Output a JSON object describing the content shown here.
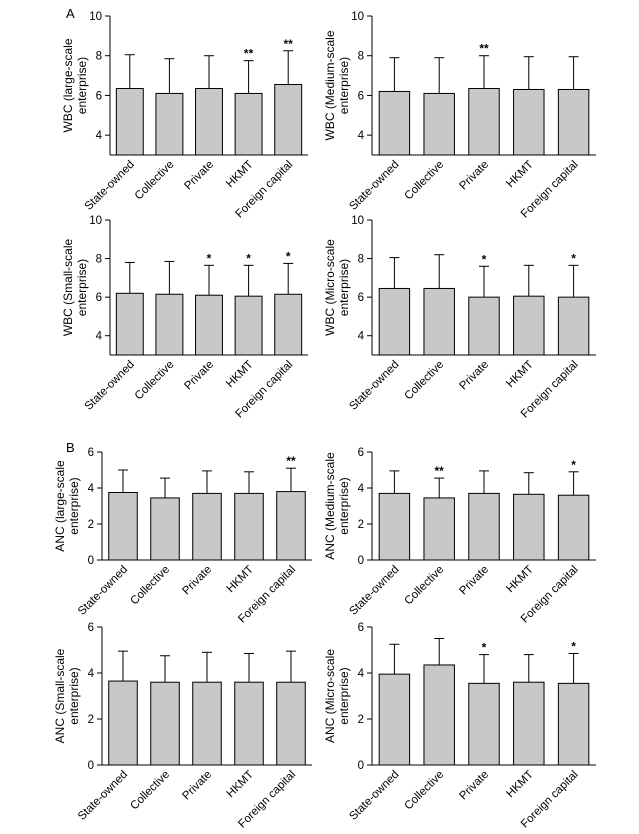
{
  "panel_labels": [
    "A",
    "B"
  ],
  "chart_data": [
    {
      "type": "bar",
      "panel": "A",
      "categories": [
        "State-owned",
        "Collective",
        "Private",
        "HKMT",
        "Foreign capital"
      ],
      "values": [
        6.35,
        6.1,
        6.35,
        6.1,
        6.55
      ],
      "errors": [
        1.7,
        1.75,
        1.65,
        1.65,
        1.7
      ],
      "significance": [
        "",
        "",
        "",
        "**",
        "**"
      ],
      "ylabel": "WBC (large-scale enterprise)",
      "ylabel_lines": [
        "WBC (large-scale",
        "enterprise)"
      ],
      "ylim": [
        3,
        10
      ],
      "yticks": [
        4,
        6,
        8,
        10
      ],
      "grid": false
    },
    {
      "type": "bar",
      "panel": "A",
      "categories": [
        "State-owned",
        "Collective",
        "Private",
        "HKMT",
        "Foreign capital"
      ],
      "values": [
        6.2,
        6.1,
        6.35,
        6.3,
        6.3
      ],
      "errors": [
        1.7,
        1.8,
        1.65,
        1.65,
        1.65
      ],
      "significance": [
        "",
        "",
        "**",
        "",
        ""
      ],
      "ylabel": "WBC (Medium-scale enterprise)",
      "ylabel_lines": [
        "WBC (Medium-scale",
        "enterprise)"
      ],
      "ylim": [
        3,
        10
      ],
      "yticks": [
        4,
        6,
        8,
        10
      ],
      "grid": false
    },
    {
      "type": "bar",
      "panel": "A",
      "categories": [
        "State-owned",
        "Collective",
        "Private",
        "HKMT",
        "Foreign capital"
      ],
      "values": [
        6.2,
        6.15,
        6.1,
        6.05,
        6.15
      ],
      "errors": [
        1.6,
        1.7,
        1.55,
        1.6,
        1.6
      ],
      "significance": [
        "",
        "",
        "*",
        "*",
        "*"
      ],
      "ylabel": "WBC (Small-scale enterprise)",
      "ylabel_lines": [
        "WBC (Small-scale",
        "enterprise)"
      ],
      "ylim": [
        3,
        10
      ],
      "yticks": [
        4,
        6,
        8,
        10
      ],
      "grid": false
    },
    {
      "type": "bar",
      "panel": "A",
      "categories": [
        "State-owned",
        "Collective",
        "Private",
        "HKMT",
        "Foreign capital"
      ],
      "values": [
        6.45,
        6.45,
        6.0,
        6.05,
        6.0
      ],
      "errors": [
        1.6,
        1.75,
        1.6,
        1.6,
        1.65
      ],
      "significance": [
        "",
        "",
        "*",
        "",
        "*"
      ],
      "ylabel": "WBC (Micro-scale enterprise)",
      "ylabel_lines": [
        "WBC (Micro-scale",
        "enterprise)"
      ],
      "ylim": [
        3,
        10
      ],
      "yticks": [
        4,
        6,
        8,
        10
      ],
      "grid": false
    },
    {
      "type": "bar",
      "panel": "B",
      "categories": [
        "State-owned",
        "Collective",
        "Private",
        "HKMT",
        "Foreign capital"
      ],
      "values": [
        3.75,
        3.45,
        3.7,
        3.7,
        3.8
      ],
      "errors": [
        1.25,
        1.1,
        1.25,
        1.2,
        1.3
      ],
      "significance": [
        "",
        "",
        "",
        "",
        "**"
      ],
      "ylabel": "ANC (large-scale enterprise)",
      "ylabel_lines": [
        "ANC (large-scale",
        "enterprise)"
      ],
      "ylim": [
        0,
        6
      ],
      "yticks": [
        0,
        2,
        4,
        6
      ],
      "grid": false
    },
    {
      "type": "bar",
      "panel": "B",
      "categories": [
        "State-owned",
        "Collective",
        "Private",
        "HKMT",
        "Foreign capital"
      ],
      "values": [
        3.7,
        3.45,
        3.7,
        3.65,
        3.6
      ],
      "errors": [
        1.25,
        1.1,
        1.25,
        1.2,
        1.3
      ],
      "significance": [
        "",
        "**",
        "",
        "",
        "*"
      ],
      "ylabel": "ANC (Medium-scale enterprise)",
      "ylabel_lines": [
        "ANC (Medium-scale",
        "enterprise)"
      ],
      "ylim": [
        0,
        6
      ],
      "yticks": [
        0,
        2,
        4,
        6
      ],
      "grid": false
    },
    {
      "type": "bar",
      "panel": "B",
      "categories": [
        "State-owned",
        "Collective",
        "Private",
        "HKMT",
        "Foreign capital"
      ],
      "values": [
        3.65,
        3.6,
        3.6,
        3.6,
        3.6
      ],
      "errors": [
        1.3,
        1.15,
        1.3,
        1.25,
        1.35
      ],
      "significance": [
        "",
        "",
        "",
        "",
        ""
      ],
      "ylabel": "ANC (Small-scale enterprise)",
      "ylabel_lines": [
        "ANC (Small-scale",
        "enterprise)"
      ],
      "ylim": [
        0,
        6
      ],
      "yticks": [
        0,
        2,
        4,
        6
      ],
      "grid": false
    },
    {
      "type": "bar",
      "panel": "B",
      "categories": [
        "State-owned",
        "Collective",
        "Private",
        "HKMT",
        "Foreign capital"
      ],
      "values": [
        3.95,
        4.35,
        3.55,
        3.6,
        3.55
      ],
      "errors": [
        1.3,
        1.15,
        1.25,
        1.2,
        1.3
      ],
      "significance": [
        "",
        "",
        "*",
        "",
        "*"
      ],
      "ylabel": "ANC (Micro-scale enterprise)",
      "ylabel_lines": [
        "ANC (Micro-scale",
        "enterprise)"
      ],
      "ylim": [
        0,
        6
      ],
      "yticks": [
        0,
        2,
        4,
        6
      ],
      "grid": false
    }
  ],
  "style": {
    "bar_fill": "#c8c8c8",
    "stroke": "#000000"
  }
}
